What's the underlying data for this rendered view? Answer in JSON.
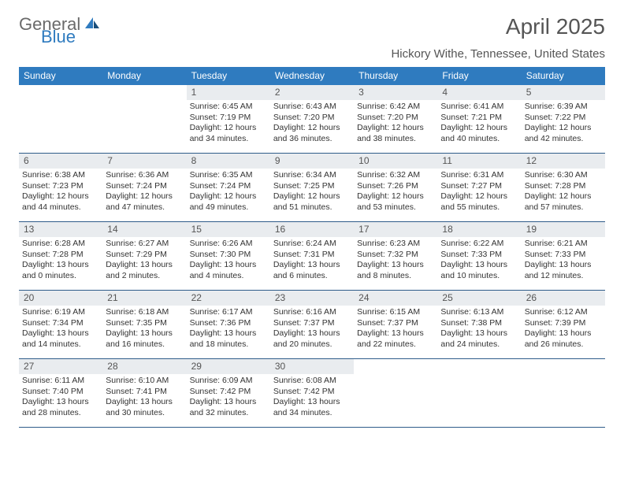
{
  "logo": {
    "text1": "General",
    "text2": "Blue"
  },
  "title": "April 2025",
  "subtitle": "Hickory Withe, Tennessee, United States",
  "colors": {
    "header_bg": "#2f7bbf",
    "header_text": "#ffffff",
    "daynum_bg": "#e9ecef",
    "row_border": "#2f5c8a",
    "body_text": "#333333",
    "title_text": "#555555"
  },
  "weekdays": [
    "Sunday",
    "Monday",
    "Tuesday",
    "Wednesday",
    "Thursday",
    "Friday",
    "Saturday"
  ],
  "weeks": [
    [
      null,
      null,
      {
        "num": "1",
        "sunrise": "Sunrise: 6:45 AM",
        "sunset": "Sunset: 7:19 PM",
        "daylight": "Daylight: 12 hours and 34 minutes."
      },
      {
        "num": "2",
        "sunrise": "Sunrise: 6:43 AM",
        "sunset": "Sunset: 7:20 PM",
        "daylight": "Daylight: 12 hours and 36 minutes."
      },
      {
        "num": "3",
        "sunrise": "Sunrise: 6:42 AM",
        "sunset": "Sunset: 7:20 PM",
        "daylight": "Daylight: 12 hours and 38 minutes."
      },
      {
        "num": "4",
        "sunrise": "Sunrise: 6:41 AM",
        "sunset": "Sunset: 7:21 PM",
        "daylight": "Daylight: 12 hours and 40 minutes."
      },
      {
        "num": "5",
        "sunrise": "Sunrise: 6:39 AM",
        "sunset": "Sunset: 7:22 PM",
        "daylight": "Daylight: 12 hours and 42 minutes."
      }
    ],
    [
      {
        "num": "6",
        "sunrise": "Sunrise: 6:38 AM",
        "sunset": "Sunset: 7:23 PM",
        "daylight": "Daylight: 12 hours and 44 minutes."
      },
      {
        "num": "7",
        "sunrise": "Sunrise: 6:36 AM",
        "sunset": "Sunset: 7:24 PM",
        "daylight": "Daylight: 12 hours and 47 minutes."
      },
      {
        "num": "8",
        "sunrise": "Sunrise: 6:35 AM",
        "sunset": "Sunset: 7:24 PM",
        "daylight": "Daylight: 12 hours and 49 minutes."
      },
      {
        "num": "9",
        "sunrise": "Sunrise: 6:34 AM",
        "sunset": "Sunset: 7:25 PM",
        "daylight": "Daylight: 12 hours and 51 minutes."
      },
      {
        "num": "10",
        "sunrise": "Sunrise: 6:32 AM",
        "sunset": "Sunset: 7:26 PM",
        "daylight": "Daylight: 12 hours and 53 minutes."
      },
      {
        "num": "11",
        "sunrise": "Sunrise: 6:31 AM",
        "sunset": "Sunset: 7:27 PM",
        "daylight": "Daylight: 12 hours and 55 minutes."
      },
      {
        "num": "12",
        "sunrise": "Sunrise: 6:30 AM",
        "sunset": "Sunset: 7:28 PM",
        "daylight": "Daylight: 12 hours and 57 minutes."
      }
    ],
    [
      {
        "num": "13",
        "sunrise": "Sunrise: 6:28 AM",
        "sunset": "Sunset: 7:28 PM",
        "daylight": "Daylight: 13 hours and 0 minutes."
      },
      {
        "num": "14",
        "sunrise": "Sunrise: 6:27 AM",
        "sunset": "Sunset: 7:29 PM",
        "daylight": "Daylight: 13 hours and 2 minutes."
      },
      {
        "num": "15",
        "sunrise": "Sunrise: 6:26 AM",
        "sunset": "Sunset: 7:30 PM",
        "daylight": "Daylight: 13 hours and 4 minutes."
      },
      {
        "num": "16",
        "sunrise": "Sunrise: 6:24 AM",
        "sunset": "Sunset: 7:31 PM",
        "daylight": "Daylight: 13 hours and 6 minutes."
      },
      {
        "num": "17",
        "sunrise": "Sunrise: 6:23 AM",
        "sunset": "Sunset: 7:32 PM",
        "daylight": "Daylight: 13 hours and 8 minutes."
      },
      {
        "num": "18",
        "sunrise": "Sunrise: 6:22 AM",
        "sunset": "Sunset: 7:33 PM",
        "daylight": "Daylight: 13 hours and 10 minutes."
      },
      {
        "num": "19",
        "sunrise": "Sunrise: 6:21 AM",
        "sunset": "Sunset: 7:33 PM",
        "daylight": "Daylight: 13 hours and 12 minutes."
      }
    ],
    [
      {
        "num": "20",
        "sunrise": "Sunrise: 6:19 AM",
        "sunset": "Sunset: 7:34 PM",
        "daylight": "Daylight: 13 hours and 14 minutes."
      },
      {
        "num": "21",
        "sunrise": "Sunrise: 6:18 AM",
        "sunset": "Sunset: 7:35 PM",
        "daylight": "Daylight: 13 hours and 16 minutes."
      },
      {
        "num": "22",
        "sunrise": "Sunrise: 6:17 AM",
        "sunset": "Sunset: 7:36 PM",
        "daylight": "Daylight: 13 hours and 18 minutes."
      },
      {
        "num": "23",
        "sunrise": "Sunrise: 6:16 AM",
        "sunset": "Sunset: 7:37 PM",
        "daylight": "Daylight: 13 hours and 20 minutes."
      },
      {
        "num": "24",
        "sunrise": "Sunrise: 6:15 AM",
        "sunset": "Sunset: 7:37 PM",
        "daylight": "Daylight: 13 hours and 22 minutes."
      },
      {
        "num": "25",
        "sunrise": "Sunrise: 6:13 AM",
        "sunset": "Sunset: 7:38 PM",
        "daylight": "Daylight: 13 hours and 24 minutes."
      },
      {
        "num": "26",
        "sunrise": "Sunrise: 6:12 AM",
        "sunset": "Sunset: 7:39 PM",
        "daylight": "Daylight: 13 hours and 26 minutes."
      }
    ],
    [
      {
        "num": "27",
        "sunrise": "Sunrise: 6:11 AM",
        "sunset": "Sunset: 7:40 PM",
        "daylight": "Daylight: 13 hours and 28 minutes."
      },
      {
        "num": "28",
        "sunrise": "Sunrise: 6:10 AM",
        "sunset": "Sunset: 7:41 PM",
        "daylight": "Daylight: 13 hours and 30 minutes."
      },
      {
        "num": "29",
        "sunrise": "Sunrise: 6:09 AM",
        "sunset": "Sunset: 7:42 PM",
        "daylight": "Daylight: 13 hours and 32 minutes."
      },
      {
        "num": "30",
        "sunrise": "Sunrise: 6:08 AM",
        "sunset": "Sunset: 7:42 PM",
        "daylight": "Daylight: 13 hours and 34 minutes."
      },
      null,
      null,
      null
    ]
  ]
}
